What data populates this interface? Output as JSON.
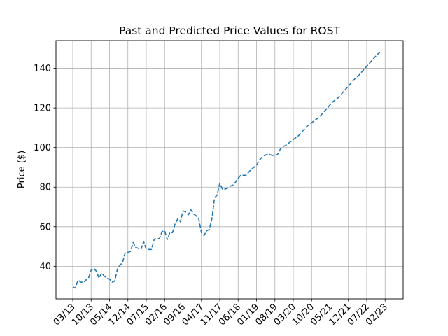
{
  "chart_data": {
    "type": "line",
    "title": "Past and Predicted Price Values for ROST",
    "xlabel": "",
    "ylabel": "Price ($)",
    "ylim": [
      23.5,
      154
    ],
    "yticks": [
      40,
      60,
      80,
      100,
      120,
      140
    ],
    "x_tick_labels": [
      "03/13",
      "10/13",
      "05/14",
      "12/14",
      "07/15",
      "02/16",
      "09/16",
      "04/17",
      "11/17",
      "06/18",
      "01/19",
      "08/19",
      "03/20",
      "10/20",
      "05/21",
      "12/21",
      "07/22",
      "02/23"
    ],
    "grid": true,
    "colors": {
      "line": "#1f77b4",
      "grid": "#b0b0b0",
      "axis": "#000000"
    },
    "series": [
      {
        "line_style": "dashed",
        "points": [
          [
            "03/13",
            29.5
          ],
          [
            "04/13",
            29.0
          ],
          [
            "05/13",
            33.0
          ],
          [
            "06/13",
            32.0
          ],
          [
            "07/13",
            31.8
          ],
          [
            "08/13",
            33.0
          ],
          [
            "09/13",
            34.0
          ],
          [
            "10/13",
            38.0
          ],
          [
            "11/13",
            39.0
          ],
          [
            "12/13",
            37.5
          ],
          [
            "01/14",
            34.0
          ],
          [
            "02/14",
            36.5
          ],
          [
            "03/14",
            35.0
          ],
          [
            "04/14",
            34.0
          ],
          [
            "05/14",
            33.5
          ],
          [
            "06/14",
            32.0
          ],
          [
            "07/14",
            32.5
          ],
          [
            "08/14",
            38.5
          ],
          [
            "09/14",
            40.5
          ],
          [
            "10/14",
            42.0
          ],
          [
            "11/14",
            47.0
          ],
          [
            "12/14",
            47.0
          ],
          [
            "01/15",
            47.5
          ],
          [
            "02/15",
            52.0
          ],
          [
            "03/15",
            49.5
          ],
          [
            "04/15",
            49.0
          ],
          [
            "05/15",
            48.5
          ],
          [
            "06/15",
            52.5
          ],
          [
            "07/15",
            48.5
          ],
          [
            "08/15",
            48.5
          ],
          [
            "09/15",
            48.5
          ],
          [
            "10/15",
            53.5
          ],
          [
            "11/15",
            54.0
          ],
          [
            "12/15",
            54.0
          ],
          [
            "01/16",
            57.5
          ],
          [
            "02/16",
            58.0
          ],
          [
            "03/16",
            53.5
          ],
          [
            "04/16",
            57.0
          ],
          [
            "05/16",
            57.0
          ],
          [
            "06/16",
            61.5
          ],
          [
            "07/16",
            64.0
          ],
          [
            "08/16",
            62.5
          ],
          [
            "09/16",
            68.0
          ],
          [
            "10/16",
            67.5
          ],
          [
            "11/16",
            66.0
          ],
          [
            "12/16",
            68.5
          ],
          [
            "01/17",
            66.5
          ],
          [
            "02/17",
            65.5
          ],
          [
            "03/17",
            64.0
          ],
          [
            "04/17",
            57.0
          ],
          [
            "05/17",
            55.5
          ],
          [
            "06/17",
            58.0
          ],
          [
            "07/17",
            58.5
          ],
          [
            "08/17",
            64.0
          ],
          [
            "09/17",
            74.5
          ],
          [
            "10/17",
            76.0
          ],
          [
            "11/17",
            82.0
          ],
          [
            "12/17",
            79.0
          ],
          [
            "01/18",
            79.0
          ],
          [
            "02/18",
            79.5
          ],
          [
            "03/18",
            80.5
          ],
          [
            "04/18",
            81.0
          ],
          [
            "05/18",
            82.5
          ],
          [
            "06/18",
            84.5
          ],
          [
            "07/18",
            86.0
          ],
          [
            "08/18",
            86.0
          ],
          [
            "09/18",
            86.0
          ],
          [
            "10/18",
            87.5
          ],
          [
            "11/18",
            89.0
          ],
          [
            "12/18",
            90.0
          ],
          [
            "01/19",
            91.0
          ],
          [
            "02/19",
            93.5
          ],
          [
            "03/19",
            95.0
          ],
          [
            "04/19",
            96.0
          ],
          [
            "05/19",
            96.5
          ],
          [
            "06/19",
            96.5
          ],
          [
            "07/19",
            96.0
          ],
          [
            "08/19",
            96.0
          ],
          [
            "09/19",
            96.5
          ],
          [
            "10/19",
            99.0
          ],
          [
            "11/19",
            100.5
          ],
          [
            "12/19",
            101.0
          ],
          [
            "01/20",
            102.0
          ],
          [
            "02/20",
            103.0
          ],
          [
            "03/20",
            104.0
          ],
          [
            "04/20",
            105.0
          ],
          [
            "05/20",
            106.0
          ],
          [
            "06/20",
            107.5
          ],
          [
            "07/20",
            109.0
          ],
          [
            "08/20",
            110.5
          ],
          [
            "09/20",
            111.5
          ],
          [
            "10/20",
            112.5
          ],
          [
            "11/20",
            113.5
          ],
          [
            "12/20",
            114.5
          ],
          [
            "01/21",
            115.5
          ],
          [
            "02/21",
            117.0
          ],
          [
            "03/21",
            118.5
          ],
          [
            "04/21",
            120.0
          ],
          [
            "05/21",
            121.5
          ],
          [
            "06/21",
            123.0
          ],
          [
            "07/21",
            124.0
          ],
          [
            "08/21",
            125.0
          ],
          [
            "09/21",
            126.5
          ],
          [
            "10/21",
            128.0
          ],
          [
            "11/21",
            129.5
          ],
          [
            "12/21",
            131.0
          ],
          [
            "01/22",
            132.5
          ],
          [
            "02/22",
            134.0
          ],
          [
            "03/22",
            135.5
          ],
          [
            "04/22",
            136.5
          ],
          [
            "05/22",
            138.0
          ],
          [
            "06/22",
            139.5
          ],
          [
            "07/22",
            141.0
          ],
          [
            "08/22",
            142.5
          ],
          [
            "09/22",
            144.0
          ],
          [
            "10/22",
            145.5
          ],
          [
            "11/22",
            147.0
          ],
          [
            "12/22",
            148.0
          ]
        ]
      }
    ]
  }
}
